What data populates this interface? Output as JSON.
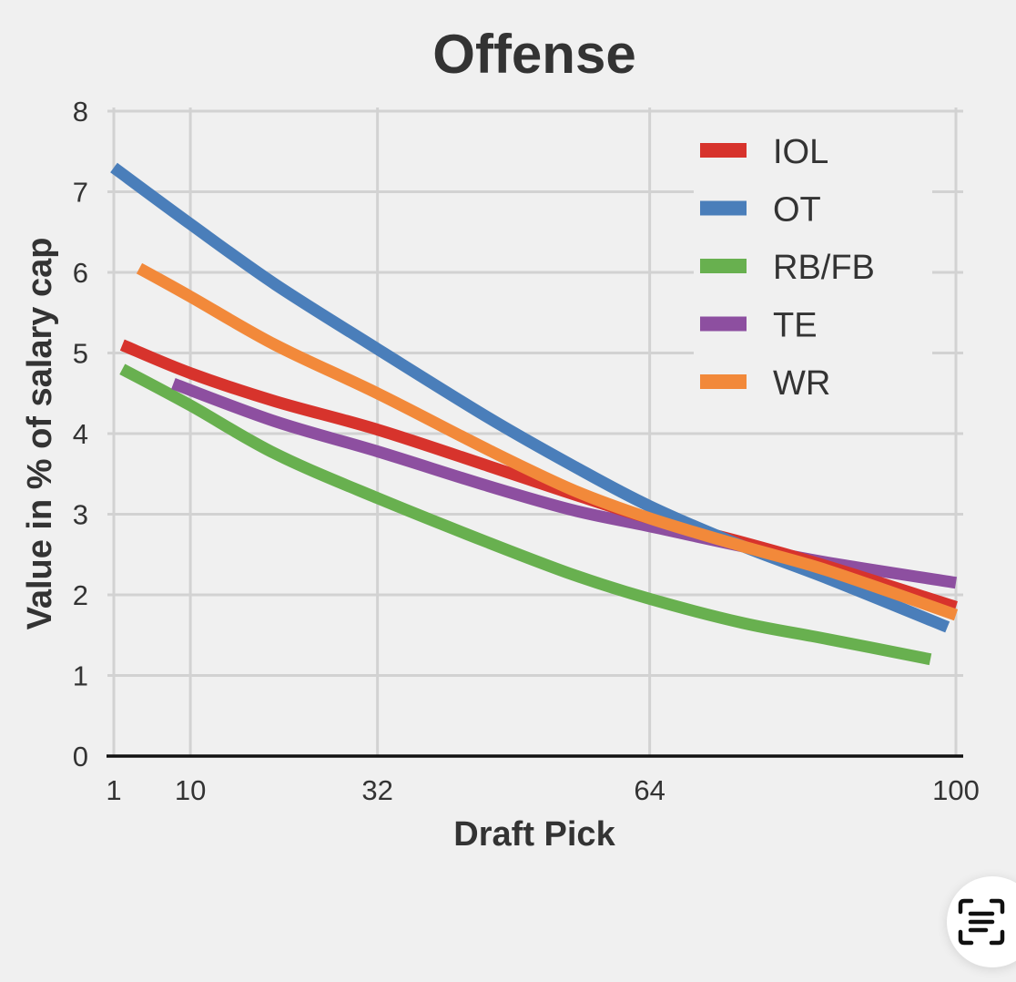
{
  "chart_data": {
    "type": "line",
    "title": "Offense",
    "xlabel": "Draft Pick",
    "ylabel": "Value in % of salary cap",
    "x_ticks": [
      "1",
      "10",
      "32",
      "64",
      "100"
    ],
    "y_ticks": [
      "0",
      "1",
      "2",
      "3",
      "4",
      "5",
      "6",
      "7",
      "8"
    ],
    "xlim": [
      1,
      100
    ],
    "ylim": [
      0,
      8
    ],
    "grid": true,
    "legend_position": "top-right",
    "series": [
      {
        "name": "IOL",
        "color": "#d7332c",
        "x": [
          2,
          10,
          20,
          32,
          45,
          55,
          64,
          75,
          85,
          100
        ],
        "y": [
          5.1,
          4.75,
          4.4,
          4.05,
          3.6,
          3.25,
          2.95,
          2.65,
          2.35,
          1.85
        ]
      },
      {
        "name": "OT",
        "color": "#4a7eba",
        "x": [
          1,
          10,
          20,
          32,
          45,
          55,
          64,
          75,
          85,
          99
        ],
        "y": [
          7.3,
          6.6,
          5.85,
          5.05,
          4.2,
          3.6,
          3.1,
          2.6,
          2.2,
          1.6
        ]
      },
      {
        "name": "RB/FB",
        "color": "#68b04f",
        "x": [
          2,
          10,
          20,
          32,
          45,
          55,
          64,
          75,
          85,
          97
        ],
        "y": [
          4.8,
          4.35,
          3.75,
          3.2,
          2.65,
          2.25,
          1.95,
          1.65,
          1.45,
          1.2
        ]
      },
      {
        "name": "TE",
        "color": "#8d4fa0",
        "x": [
          8,
          20,
          32,
          45,
          55,
          64,
          75,
          85,
          100
        ],
        "y": [
          4.62,
          4.15,
          3.78,
          3.35,
          3.05,
          2.85,
          2.6,
          2.4,
          2.15
        ]
      },
      {
        "name": "WR",
        "color": "#f2893a",
        "x": [
          4,
          10,
          20,
          32,
          45,
          55,
          64,
          75,
          85,
          100
        ],
        "y": [
          6.05,
          5.7,
          5.1,
          4.5,
          3.8,
          3.3,
          2.95,
          2.6,
          2.3,
          1.75
        ]
      }
    ]
  },
  "live_text_icon": "live-text-icon"
}
